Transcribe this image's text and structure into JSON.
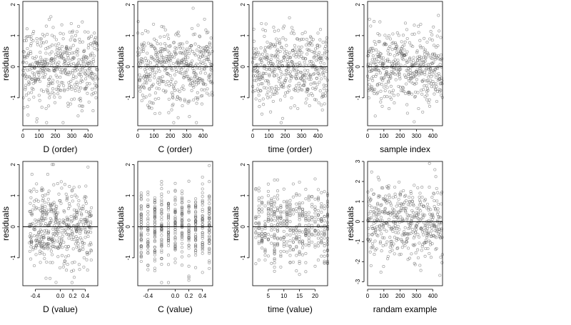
{
  "chart_data": [
    {
      "type": "scatter",
      "panel": "top-left",
      "xlabel": "D (order)",
      "ylabel": "residuals",
      "xlim": [
        0,
        460
      ],
      "ylim": [
        -1.9,
        2.1
      ],
      "xticks": [
        0,
        100,
        200,
        300,
        400
      ],
      "xtick_labels": [
        "0",
        "100",
        "200",
        "300",
        "400"
      ],
      "yticks": [
        -1,
        0,
        1,
        2
      ],
      "ytick_labels": [
        "-1",
        "0",
        "1",
        "2"
      ],
      "zero_line": 0,
      "x_pattern": "index",
      "n_points": 460
    },
    {
      "type": "scatter",
      "panel": "top-2",
      "xlabel": "C (order)",
      "ylabel": "residuals",
      "xlim": [
        0,
        460
      ],
      "ylim": [
        -1.9,
        2.1
      ],
      "xticks": [
        0,
        100,
        200,
        300,
        400
      ],
      "xtick_labels": [
        "0",
        "100",
        "200",
        "300",
        "400"
      ],
      "yticks": [
        -1,
        0,
        1,
        2
      ],
      "ytick_labels": [
        "-1",
        "0",
        "1",
        "2"
      ],
      "zero_line": 0,
      "x_pattern": "index",
      "n_points": 460
    },
    {
      "type": "scatter",
      "panel": "top-3",
      "xlabel": "time (order)",
      "ylabel": "residuals",
      "xlim": [
        0,
        460
      ],
      "ylim": [
        -1.9,
        2.1
      ],
      "xticks": [
        0,
        100,
        200,
        300,
        400
      ],
      "xtick_labels": [
        "0",
        "100",
        "200",
        "300",
        "400"
      ],
      "yticks": [
        -1,
        0,
        1,
        2
      ],
      "ytick_labels": [
        "-1",
        "0",
        "1",
        "2"
      ],
      "zero_line": 0,
      "x_pattern": "index",
      "n_points": 460
    },
    {
      "type": "scatter",
      "panel": "top-right",
      "xlabel": "sample index",
      "ylabel": "residuals",
      "xlim": [
        0,
        460
      ],
      "ylim": [
        -1.9,
        2.1
      ],
      "xticks": [
        0,
        100,
        200,
        300,
        400
      ],
      "xtick_labels": [
        "0",
        "100",
        "200",
        "300",
        "400"
      ],
      "yticks": [
        -1,
        0,
        1,
        2
      ],
      "ytick_labels": [
        "-1",
        "0",
        "1",
        "2"
      ],
      "zero_line": 0,
      "x_pattern": "index",
      "n_points": 460
    },
    {
      "type": "scatter",
      "panel": "bottom-left",
      "xlabel": "D (value)",
      "ylabel": "residuals",
      "xlim": [
        -0.6,
        0.6
      ],
      "ylim": [
        -1.9,
        2.1
      ],
      "xticks": [
        -0.4,
        0.0,
        0.2,
        0.4
      ],
      "xtick_labels": [
        "-0.4",
        "0.0",
        "0.2",
        "0.4"
      ],
      "yticks": [
        -1,
        0,
        1,
        2
      ],
      "ytick_labels": [
        "-1",
        "0",
        "1",
        "2"
      ],
      "zero_line": 0,
      "x_pattern": "continuous",
      "n_points": 460
    },
    {
      "type": "scatter",
      "panel": "bottom-2",
      "xlabel": "C (value)",
      "ylabel": "residuals",
      "xlim": [
        -0.55,
        0.55
      ],
      "ylim": [
        -1.9,
        2.1
      ],
      "xticks": [
        -0.4,
        0.0,
        0.2,
        0.4
      ],
      "xtick_labels": [
        "-0.4",
        "0.0",
        "0.2",
        "0.4"
      ],
      "yticks": [
        -1,
        0,
        1,
        2
      ],
      "ytick_labels": [
        "-1",
        "0",
        "1",
        "2"
      ],
      "zero_line": 0,
      "x_pattern": "discrete",
      "x_levels": [
        -0.5,
        -0.4,
        -0.3,
        -0.2,
        -0.1,
        0.0,
        0.1,
        0.2,
        0.3,
        0.4,
        0.5
      ],
      "n_points": 460
    },
    {
      "type": "scatter",
      "panel": "bottom-3",
      "xlabel": "time (value)",
      "ylabel": "residuals",
      "xlim": [
        0,
        24
      ],
      "ylim": [
        -1.9,
        2.1
      ],
      "xticks": [
        5,
        10,
        15,
        20
      ],
      "xtick_labels": [
        "5",
        "10",
        "15",
        "20"
      ],
      "yticks": [
        -1,
        0,
        1,
        2
      ],
      "ytick_labels": [
        "-1",
        "0",
        "1",
        "2"
      ],
      "zero_line": 0,
      "x_pattern": "discrete",
      "x_levels": [
        1,
        2,
        3,
        4,
        5,
        6,
        7,
        8,
        9,
        10,
        11,
        12,
        13,
        14,
        15,
        16,
        17,
        18,
        19,
        20,
        21,
        22,
        23,
        24
      ],
      "n_points": 460
    },
    {
      "type": "scatter",
      "panel": "bottom-right",
      "xlabel": "randam example",
      "ylabel": "residuals",
      "xlim": [
        0,
        460
      ],
      "ylim": [
        -3.2,
        3.0
      ],
      "xticks": [
        0,
        100,
        200,
        300,
        400
      ],
      "xtick_labels": [
        "0",
        "100",
        "200",
        "300",
        "400"
      ],
      "yticks": [
        -3,
        -2,
        -1,
        0,
        1,
        2,
        3
      ],
      "ytick_labels": [
        "-3",
        "-2",
        "-1",
        "0",
        "1",
        "2",
        "3"
      ],
      "zero_line": 0,
      "x_pattern": "index",
      "n_points": 460
    }
  ]
}
